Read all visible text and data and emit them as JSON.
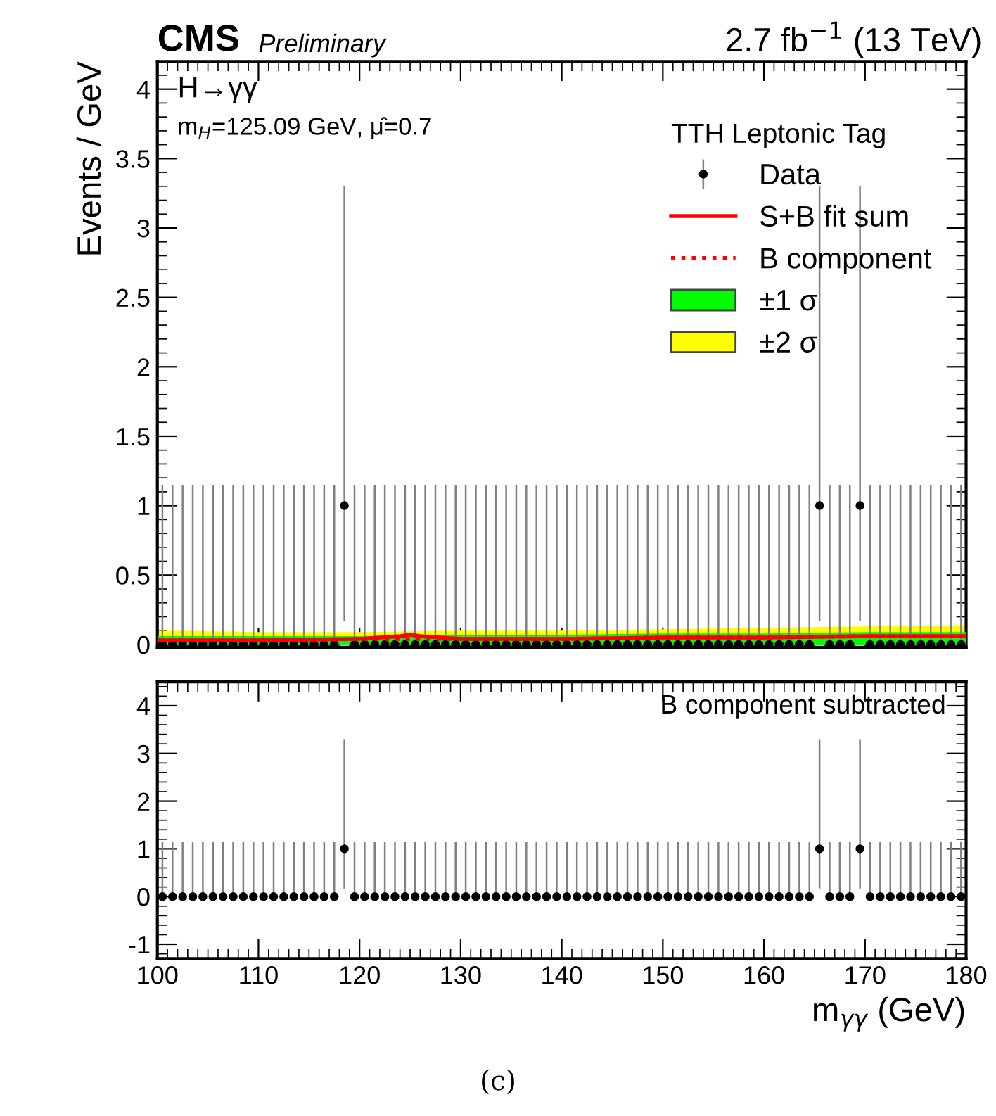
{
  "chart_data": [
    {
      "type": "scatter",
      "ylabel": "Events / GeV",
      "legend_title": "TTH Leptonic Tag",
      "legend": "top right",
      "tick_labels": "y",
      "xlim": [
        100,
        180
      ],
      "xticks": [
        100,
        110,
        120,
        130,
        140,
        150,
        160,
        170,
        180
      ],
      "ylim": [
        -0.02,
        4.2
      ],
      "yticks": [
        0,
        0.5,
        1,
        1.5,
        2,
        2.5,
        3,
        3.5,
        4
      ],
      "annotations": [
        "CMS",
        "Preliminary",
        "2.7 fb$^{−1}$ (13 TeV)",
        "H→γγ",
        "m$_{H}$=125.09 GeV, μ̂=0.7"
      ],
      "series": [
        {
          "name": "Data",
          "marker": "circle",
          "color": "#000000",
          "x": [
            100.5,
            101.5,
            102.5,
            103.5,
            104.5,
            105.5,
            106.5,
            107.5,
            108.5,
            109.5,
            110.5,
            111.5,
            112.5,
            113.5,
            114.5,
            115.5,
            116.5,
            117.5,
            118.5,
            119.5,
            120.5,
            121.5,
            122.5,
            123.5,
            124.5,
            125.5,
            126.5,
            127.5,
            128.5,
            129.5,
            130.5,
            131.5,
            132.5,
            133.5,
            134.5,
            135.5,
            136.5,
            137.5,
            138.5,
            139.5,
            140.5,
            141.5,
            142.5,
            143.5,
            144.5,
            145.5,
            146.5,
            147.5,
            148.5,
            149.5,
            150.5,
            151.5,
            152.5,
            153.5,
            154.5,
            155.5,
            156.5,
            157.5,
            158.5,
            159.5,
            160.5,
            161.5,
            162.5,
            163.5,
            164.5,
            165.5,
            166.5,
            167.5,
            168.5,
            169.5,
            170.5,
            171.5,
            172.5,
            173.5,
            174.5,
            175.5,
            176.5,
            177.5,
            178.5,
            179.5
          ],
          "values": [
            0,
            0,
            0,
            0,
            0,
            0,
            0,
            0,
            0,
            0,
            0,
            0,
            0,
            0,
            0,
            0,
            0,
            0,
            1,
            0,
            0,
            0,
            0,
            0,
            0,
            0,
            0,
            0,
            0,
            0,
            0,
            0,
            0,
            0,
            0,
            0,
            0,
            0,
            0,
            0,
            0,
            0,
            0,
            0,
            0,
            0,
            0,
            0,
            0,
            0,
            0,
            0,
            0,
            0,
            0,
            0,
            0,
            0,
            0,
            0,
            0,
            0,
            0,
            0,
            0,
            1,
            0,
            0,
            0,
            1,
            0,
            0,
            0,
            0,
            0,
            0,
            0,
            0,
            0,
            0
          ],
          "errors": [
            [
              0,
              1.15
            ],
            [
              0,
              1.15
            ],
            [
              0,
              1.15
            ],
            [
              0,
              1.15
            ],
            [
              0,
              1.15
            ],
            [
              0,
              1.15
            ],
            [
              0,
              1.15
            ],
            [
              0,
              1.15
            ],
            [
              0,
              1.15
            ],
            [
              0,
              1.15
            ],
            [
              0,
              1.15
            ],
            [
              0,
              1.15
            ],
            [
              0,
              1.15
            ],
            [
              0,
              1.15
            ],
            [
              0,
              1.15
            ],
            [
              0,
              1.15
            ],
            [
              0,
              1.15
            ],
            [
              0,
              1.15
            ],
            [
              0.17,
              3.3
            ],
            [
              0,
              1.15
            ],
            [
              0,
              1.15
            ],
            [
              0,
              1.15
            ],
            [
              0,
              1.15
            ],
            [
              0,
              1.15
            ],
            [
              0,
              1.15
            ],
            [
              0,
              1.15
            ],
            [
              0,
              1.15
            ],
            [
              0,
              1.15
            ],
            [
              0,
              1.15
            ],
            [
              0,
              1.15
            ],
            [
              0,
              1.15
            ],
            [
              0,
              1.15
            ],
            [
              0,
              1.15
            ],
            [
              0,
              1.15
            ],
            [
              0,
              1.15
            ],
            [
              0,
              1.15
            ],
            [
              0,
              1.15
            ],
            [
              0,
              1.15
            ],
            [
              0,
              1.15
            ],
            [
              0,
              1.15
            ],
            [
              0,
              1.15
            ],
            [
              0,
              1.15
            ],
            [
              0,
              1.15
            ],
            [
              0,
              1.15
            ],
            [
              0,
              1.15
            ],
            [
              0,
              1.15
            ],
            [
              0,
              1.15
            ],
            [
              0,
              1.15
            ],
            [
              0,
              1.15
            ],
            [
              0,
              1.15
            ],
            [
              0,
              1.15
            ],
            [
              0,
              1.15
            ],
            [
              0,
              1.15
            ],
            [
              0,
              1.15
            ],
            [
              0,
              1.15
            ],
            [
              0,
              1.15
            ],
            [
              0,
              1.15
            ],
            [
              0,
              1.15
            ],
            [
              0,
              1.15
            ],
            [
              0,
              1.15
            ],
            [
              0,
              1.15
            ],
            [
              0,
              1.15
            ],
            [
              0,
              1.15
            ],
            [
              0,
              1.15
            ],
            [
              0,
              1.15
            ],
            [
              0.17,
              3.3
            ],
            [
              0,
              1.15
            ],
            [
              0,
              1.15
            ],
            [
              0,
              1.15
            ],
            [
              0.17,
              3.3
            ],
            [
              0,
              1.15
            ],
            [
              0,
              1.15
            ],
            [
              0,
              1.15
            ],
            [
              0,
              1.15
            ],
            [
              0,
              1.15
            ],
            [
              0,
              1.15
            ],
            [
              0,
              1.15
            ],
            [
              0,
              1.15
            ],
            [
              0,
              1.15
            ],
            [
              0,
              1.15
            ]
          ]
        },
        {
          "name": "S+B fit sum",
          "type": "line",
          "line_style": "solid",
          "color": "#ff0000",
          "x": [
            100,
            110,
            120,
            122,
            124,
            125,
            126,
            128,
            130,
            140,
            150,
            160,
            170,
            180
          ],
          "values": [
            0.03,
            0.03,
            0.04,
            0.05,
            0.06,
            0.07,
            0.06,
            0.05,
            0.04,
            0.04,
            0.05,
            0.05,
            0.06,
            0.06
          ]
        },
        {
          "name": "B component",
          "type": "line",
          "line_style": "dotted",
          "color": "#ff0000",
          "x": [
            100,
            110,
            120,
            130,
            140,
            150,
            160,
            170,
            180
          ],
          "values": [
            0.03,
            0.03,
            0.04,
            0.04,
            0.04,
            0.05,
            0.05,
            0.06,
            0.06
          ]
        },
        {
          "name": "±1 σ",
          "type": "area",
          "color": "#00ff00",
          "x": [
            100,
            110,
            120,
            130,
            140,
            150,
            160,
            170,
            180
          ],
          "values": [
            0.06,
            0.06,
            0.06,
            0.07,
            0.07,
            0.08,
            0.08,
            0.09,
            0.09
          ]
        },
        {
          "name": "±2 σ",
          "type": "area",
          "color": "#ffff00",
          "x": [
            100,
            110,
            120,
            130,
            140,
            150,
            160,
            170,
            180
          ],
          "values": [
            0.1,
            0.09,
            0.09,
            0.1,
            0.1,
            0.11,
            0.12,
            0.13,
            0.14
          ]
        }
      ]
    },
    {
      "type": "scatter",
      "xlabel": "m$_{γγ}$ (GeV)",
      "xlim": [
        100,
        180
      ],
      "xticks": [
        100,
        110,
        120,
        130,
        140,
        150,
        160,
        170,
        180
      ],
      "ylim": [
        -1.3,
        4.5
      ],
      "yticks": [
        -1,
        0,
        1,
        2,
        3,
        4
      ],
      "annotations": [
        "B component subtracted",
        "(c)"
      ],
      "series": [
        {
          "marker": "circle",
          "color": "#000000",
          "x": [
            100.5,
            101.5,
            102.5,
            103.5,
            104.5,
            105.5,
            106.5,
            107.5,
            108.5,
            109.5,
            110.5,
            111.5,
            112.5,
            113.5,
            114.5,
            115.5,
            116.5,
            117.5,
            118.5,
            119.5,
            120.5,
            121.5,
            122.5,
            123.5,
            124.5,
            125.5,
            126.5,
            127.5,
            128.5,
            129.5,
            130.5,
            131.5,
            132.5,
            133.5,
            134.5,
            135.5,
            136.5,
            137.5,
            138.5,
            139.5,
            140.5,
            141.5,
            142.5,
            143.5,
            144.5,
            145.5,
            146.5,
            147.5,
            148.5,
            149.5,
            150.5,
            151.5,
            152.5,
            153.5,
            154.5,
            155.5,
            156.5,
            157.5,
            158.5,
            159.5,
            160.5,
            161.5,
            162.5,
            163.5,
            164.5,
            165.5,
            166.5,
            167.5,
            168.5,
            169.5,
            170.5,
            171.5,
            172.5,
            173.5,
            174.5,
            175.5,
            176.5,
            177.5,
            178.5,
            179.5
          ],
          "values": [
            0,
            0,
            0,
            0,
            0,
            0,
            0,
            0,
            0,
            0,
            0,
            0,
            0,
            0,
            0,
            0,
            0,
            0,
            1,
            0,
            0,
            0,
            0,
            0,
            0,
            0,
            0,
            0,
            0,
            0,
            0,
            0,
            0,
            0,
            0,
            0,
            0,
            0,
            0,
            0,
            0,
            0,
            0,
            0,
            0,
            0,
            0,
            0,
            0,
            0,
            0,
            0,
            0,
            0,
            0,
            0,
            0,
            0,
            0,
            0,
            0,
            0,
            0,
            0,
            0,
            1,
            0,
            0,
            0,
            1,
            0,
            0,
            0,
            0,
            0,
            0,
            0,
            0,
            0,
            0
          ],
          "errors": [
            [
              0,
              1.15
            ],
            [
              0,
              1.15
            ],
            [
              0,
              1.15
            ],
            [
              0,
              1.15
            ],
            [
              0,
              1.15
            ],
            [
              0,
              1.15
            ],
            [
              0,
              1.15
            ],
            [
              0,
              1.15
            ],
            [
              0,
              1.15
            ],
            [
              0,
              1.15
            ],
            [
              0,
              1.15
            ],
            [
              0,
              1.15
            ],
            [
              0,
              1.15
            ],
            [
              0,
              1.15
            ],
            [
              0,
              1.15
            ],
            [
              0,
              1.15
            ],
            [
              0,
              1.15
            ],
            [
              0,
              1.15
            ],
            [
              0.17,
              3.3
            ],
            [
              0,
              1.15
            ],
            [
              0,
              1.15
            ],
            [
              0,
              1.15
            ],
            [
              0,
              1.15
            ],
            [
              0,
              1.15
            ],
            [
              0,
              1.15
            ],
            [
              0,
              1.15
            ],
            [
              0,
              1.15
            ],
            [
              0,
              1.15
            ],
            [
              0,
              1.15
            ],
            [
              0,
              1.15
            ],
            [
              0,
              1.15
            ],
            [
              0,
              1.15
            ],
            [
              0,
              1.15
            ],
            [
              0,
              1.15
            ],
            [
              0,
              1.15
            ],
            [
              0,
              1.15
            ],
            [
              0,
              1.15
            ],
            [
              0,
              1.15
            ],
            [
              0,
              1.15
            ],
            [
              0,
              1.15
            ],
            [
              0,
              1.15
            ],
            [
              0,
              1.15
            ],
            [
              0,
              1.15
            ],
            [
              0,
              1.15
            ],
            [
              0,
              1.15
            ],
            [
              0,
              1.15
            ],
            [
              0,
              1.15
            ],
            [
              0,
              1.15
            ],
            [
              0,
              1.15
            ],
            [
              0,
              1.15
            ],
            [
              0,
              1.15
            ],
            [
              0,
              1.15
            ],
            [
              0,
              1.15
            ],
            [
              0,
              1.15
            ],
            [
              0,
              1.15
            ],
            [
              0,
              1.15
            ],
            [
              0,
              1.15
            ],
            [
              0,
              1.15
            ],
            [
              0,
              1.15
            ],
            [
              0,
              1.15
            ],
            [
              0,
              1.15
            ],
            [
              0,
              1.15
            ],
            [
              0,
              1.15
            ],
            [
              0,
              1.15
            ],
            [
              0,
              1.15
            ],
            [
              0.17,
              3.3
            ],
            [
              0,
              1.15
            ],
            [
              0,
              1.15
            ],
            [
              0,
              1.15
            ],
            [
              0.17,
              3.3
            ],
            [
              0,
              1.15
            ],
            [
              0,
              1.15
            ],
            [
              0,
              1.15
            ],
            [
              0,
              1.15
            ],
            [
              0,
              1.15
            ],
            [
              0,
              1.15
            ],
            [
              0,
              1.15
            ],
            [
              0,
              1.15
            ],
            [
              0,
              1.15
            ],
            [
              0,
              1.15
            ]
          ]
        }
      ]
    }
  ]
}
